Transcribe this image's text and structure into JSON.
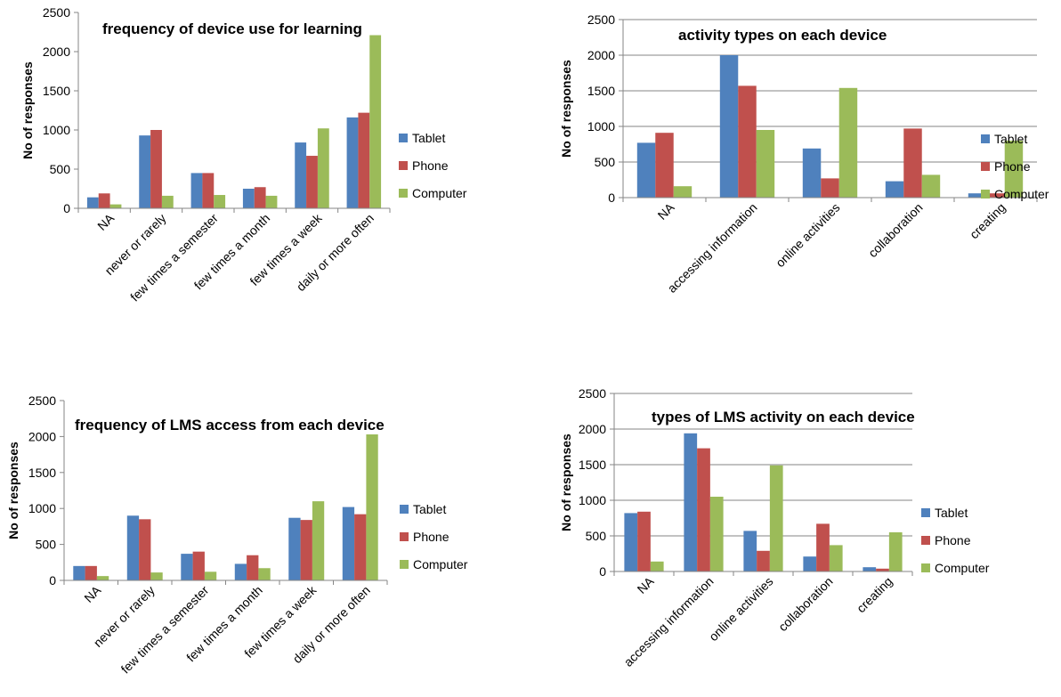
{
  "colors": {
    "Tablet": "#4F81BD",
    "Phone": "#C0504D",
    "Computer": "#9BBB59",
    "grid": "#868686",
    "axis": "#868686"
  },
  "chart_data": [
    {
      "type": "bar",
      "title": "frequency of device use for learning",
      "ylabel": "No of responses",
      "xlabel": "",
      "ylim": [
        0,
        2500
      ],
      "yticks": [
        0,
        500,
        1000,
        1500,
        2000,
        2500
      ],
      "grid": false,
      "legend": "right",
      "categories": [
        "NA",
        "never or rarely",
        "few times a semester",
        "few times a month",
        "few times a week",
        "daily or more often"
      ],
      "series": [
        {
          "name": "Tablet",
          "values": [
            140,
            930,
            450,
            250,
            840,
            1160
          ]
        },
        {
          "name": "Phone",
          "values": [
            190,
            1000,
            450,
            270,
            670,
            1220
          ]
        },
        {
          "name": "Computer",
          "values": [
            50,
            160,
            170,
            160,
            1020,
            2210
          ]
        }
      ]
    },
    {
      "type": "bar",
      "title": "activity types on each device",
      "ylabel": "No of responses",
      "xlabel": "",
      "ylim": [
        0,
        2500
      ],
      "yticks": [
        0,
        500,
        1000,
        1500,
        2000,
        2500
      ],
      "grid": true,
      "legend": "right",
      "categories": [
        "NA",
        "accessing information",
        "online activities",
        "collaboration",
        "creating"
      ],
      "series": [
        {
          "name": "Tablet",
          "values": [
            770,
            2000,
            690,
            230,
            60
          ]
        },
        {
          "name": "Phone",
          "values": [
            910,
            1570,
            270,
            970,
            60
          ]
        },
        {
          "name": "Computer",
          "values": [
            160,
            950,
            1540,
            320,
            800
          ]
        }
      ]
    },
    {
      "type": "bar",
      "title": "frequency of LMS access from each device",
      "ylabel": "No of responses",
      "xlabel": "",
      "ylim": [
        0,
        2500
      ],
      "yticks": [
        0,
        500,
        1000,
        1500,
        2000,
        2500
      ],
      "grid": false,
      "legend": "right",
      "categories": [
        "NA",
        "never or rarely",
        "few times a semester",
        "few times a month",
        "few times a week",
        "daily or more often"
      ],
      "series": [
        {
          "name": "Tablet",
          "values": [
            200,
            900,
            370,
            230,
            870,
            1020
          ]
        },
        {
          "name": "Phone",
          "values": [
            200,
            850,
            400,
            350,
            840,
            920
          ]
        },
        {
          "name": "Computer",
          "values": [
            60,
            110,
            120,
            170,
            1100,
            2030
          ]
        }
      ]
    },
    {
      "type": "bar",
      "title": "types of LMS activity on each device",
      "ylabel": "No of responses",
      "xlabel": "",
      "ylim": [
        0,
        2500
      ],
      "yticks": [
        0,
        500,
        1000,
        1500,
        2000,
        2500
      ],
      "grid": true,
      "legend": "right",
      "categories": [
        "NA",
        "accessing information",
        "online activities",
        "collaboration",
        "creating"
      ],
      "series": [
        {
          "name": "Tablet",
          "values": [
            820,
            1940,
            570,
            210,
            60
          ]
        },
        {
          "name": "Phone",
          "values": [
            840,
            1730,
            290,
            670,
            40
          ]
        },
        {
          "name": "Computer",
          "values": [
            140,
            1050,
            1490,
            370,
            550
          ]
        }
      ]
    }
  ]
}
